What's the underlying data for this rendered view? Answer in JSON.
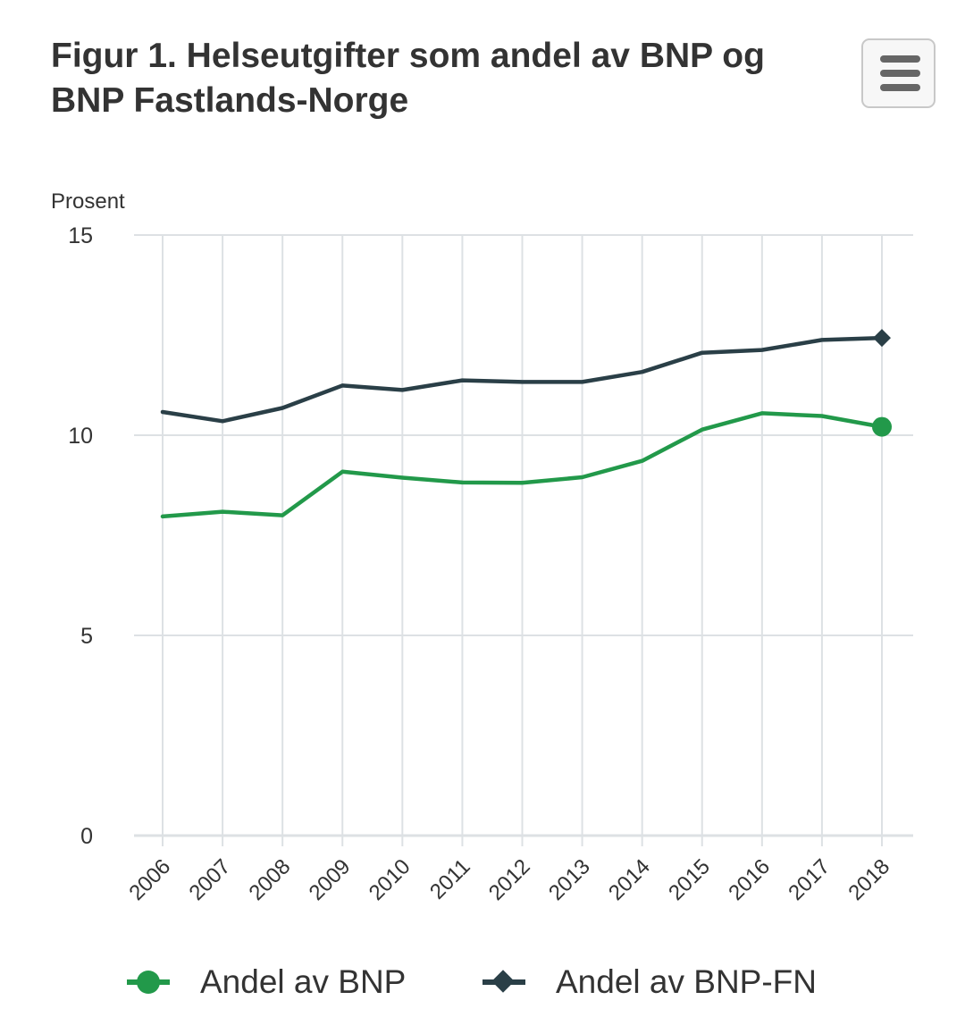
{
  "colors": {
    "series_bnp": "#22994a",
    "series_bnp_fn": "#2a3f47",
    "grid": "#dde1e4",
    "text": "#333333",
    "menu_icon": "#666666"
  },
  "menu": {
    "icon": "hamburger-menu-icon"
  },
  "chart_data": {
    "type": "line",
    "title": "Figur 1. Helseutgifter som andel av BNP og BNP Fastlands-Norge",
    "ylabel": "Prosent",
    "xlabel": "",
    "categories": [
      "2006",
      "2007",
      "2008",
      "2009",
      "2010",
      "2011",
      "2012",
      "2013",
      "2014",
      "2015",
      "2016",
      "2017",
      "2018"
    ],
    "ylim": [
      0,
      15
    ],
    "yticks": [
      0,
      5,
      10,
      15
    ],
    "grid": true,
    "legend_position": "bottom",
    "series": [
      {
        "name": "Andel av BNP",
        "marker": "circle",
        "values": [
          7.97,
          8.09,
          8.0,
          9.09,
          8.94,
          8.82,
          8.81,
          8.95,
          9.36,
          10.14,
          10.55,
          10.48,
          10.21
        ]
      },
      {
        "name": "Andel av BNP-FN",
        "marker": "diamond",
        "values": [
          10.58,
          10.35,
          10.68,
          11.24,
          11.13,
          11.37,
          11.33,
          11.33,
          11.58,
          12.06,
          12.13,
          12.38,
          12.43
        ]
      }
    ]
  }
}
